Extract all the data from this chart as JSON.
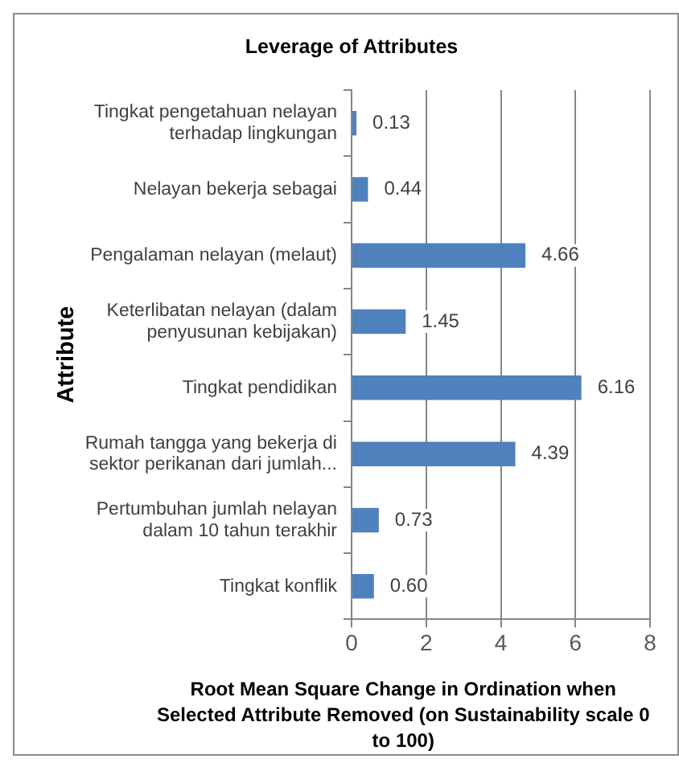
{
  "chart_data": {
    "type": "bar",
    "orientation": "horizontal",
    "title": "Leverage of Attributes",
    "xlabel": "Root Mean Square Change in Ordination when Selected Attribute Removed (on Sustainability scale 0 to 100)",
    "ylabel": "Attribute",
    "categories": [
      "Tingkat pengetahuan nelayan terhadap lingkungan",
      "Nelayan bekerja sebagai",
      "Pengalaman nelayan (melaut)",
      "Keterlibatan nelayan (dalam penyusunan kebijakan)",
      "Tingkat pendidikan",
      "Rumah tangga yang bekerja di sektor perikanan dari jumlah...",
      "Pertumbuhan jumlah nelayan dalam 10 tahun terakhir",
      "Tingkat konflik"
    ],
    "values": [
      0.13,
      0.44,
      4.66,
      1.45,
      6.16,
      4.39,
      0.73,
      0.6
    ],
    "value_labels": [
      "0.13",
      "0.44",
      "4.66",
      "1.45",
      "6.16",
      "4.39",
      "0.73",
      "0.60"
    ],
    "color": "#4f81bd",
    "xlim": [
      0,
      8
    ],
    "xticks": [
      0,
      2,
      4,
      6,
      8
    ],
    "grid": "x",
    "legend": false
  }
}
